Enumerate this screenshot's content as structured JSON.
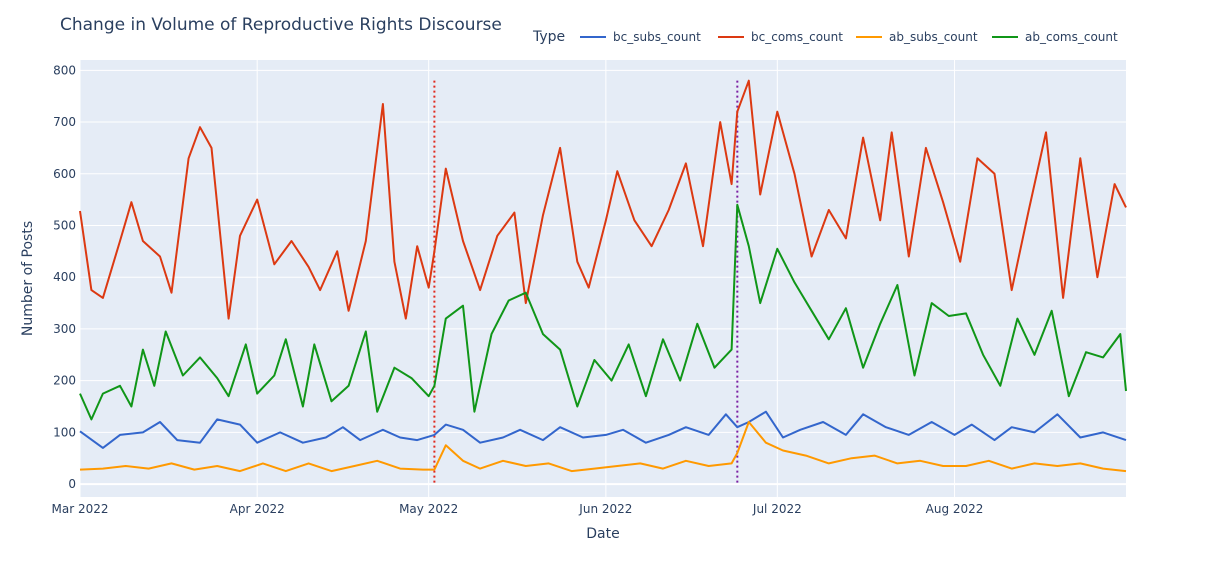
{
  "chart_data": {
    "type": "line",
    "title": "Change in Volume of Reproductive Rights Discourse",
    "xlabel": "Date",
    "ylabel": "Number of Posts",
    "legend_title": "Type",
    "legend_position": "top-right, horizontal",
    "grid": true,
    "x_range": [
      "2022-03-01",
      "2022-08-31"
    ],
    "ylim": [
      -25,
      820
    ],
    "x_ticks": [
      {
        "date": "2022-03-01",
        "label": "Mar 2022"
      },
      {
        "date": "2022-04-01",
        "label": "Apr 2022"
      },
      {
        "date": "2022-05-01",
        "label": "May 2022"
      },
      {
        "date": "2022-06-01",
        "label": "Jun 2022"
      },
      {
        "date": "2022-07-01",
        "label": "Jul 2022"
      },
      {
        "date": "2022-08-01",
        "label": "Aug 2022"
      }
    ],
    "y_ticks": [
      0,
      100,
      200,
      300,
      400,
      500,
      600,
      700,
      800
    ],
    "reference_lines": [
      {
        "date": "2022-05-02",
        "color": "#e0281e",
        "style": "dotted"
      },
      {
        "date": "2022-06-24",
        "color": "#7b1fa2",
        "style": "dotted"
      }
    ],
    "series_key_points": [
      {
        "name": "bc_subs_count",
        "color": "#3366cc",
        "points": [
          [
            "2022-03-01",
            102
          ],
          [
            "2022-03-05",
            70
          ],
          [
            "2022-03-08",
            95
          ],
          [
            "2022-03-12",
            100
          ],
          [
            "2022-03-15",
            120
          ],
          [
            "2022-03-18",
            85
          ],
          [
            "2022-03-22",
            80
          ],
          [
            "2022-03-25",
            125
          ],
          [
            "2022-03-29",
            115
          ],
          [
            "2022-04-01",
            80
          ],
          [
            "2022-04-05",
            100
          ],
          [
            "2022-04-09",
            80
          ],
          [
            "2022-04-13",
            90
          ],
          [
            "2022-04-16",
            110
          ],
          [
            "2022-04-19",
            85
          ],
          [
            "2022-04-23",
            105
          ],
          [
            "2022-04-26",
            90
          ],
          [
            "2022-04-29",
            85
          ],
          [
            "2022-05-02",
            95
          ],
          [
            "2022-05-04",
            115
          ],
          [
            "2022-05-07",
            105
          ],
          [
            "2022-05-10",
            80
          ],
          [
            "2022-05-14",
            90
          ],
          [
            "2022-05-17",
            105
          ],
          [
            "2022-05-21",
            85
          ],
          [
            "2022-05-24",
            110
          ],
          [
            "2022-05-28",
            90
          ],
          [
            "2022-06-01",
            95
          ],
          [
            "2022-06-04",
            105
          ],
          [
            "2022-06-08",
            80
          ],
          [
            "2022-06-12",
            95
          ],
          [
            "2022-06-15",
            110
          ],
          [
            "2022-06-19",
            95
          ],
          [
            "2022-06-22",
            135
          ],
          [
            "2022-06-24",
            110
          ],
          [
            "2022-06-26",
            120
          ],
          [
            "2022-06-29",
            140
          ],
          [
            "2022-07-02",
            90
          ],
          [
            "2022-07-05",
            105
          ],
          [
            "2022-07-09",
            120
          ],
          [
            "2022-07-13",
            95
          ],
          [
            "2022-07-16",
            135
          ],
          [
            "2022-07-20",
            110
          ],
          [
            "2022-07-24",
            95
          ],
          [
            "2022-07-28",
            120
          ],
          [
            "2022-08-01",
            95
          ],
          [
            "2022-08-04",
            115
          ],
          [
            "2022-08-08",
            85
          ],
          [
            "2022-08-11",
            110
          ],
          [
            "2022-08-15",
            100
          ],
          [
            "2022-08-19",
            135
          ],
          [
            "2022-08-23",
            90
          ],
          [
            "2022-08-27",
            100
          ],
          [
            "2022-08-31",
            85
          ]
        ]
      },
      {
        "name": "bc_coms_count",
        "color": "#dc3912",
        "points": [
          [
            "2022-03-01",
            528
          ],
          [
            "2022-03-03",
            375
          ],
          [
            "2022-03-05",
            360
          ],
          [
            "2022-03-08",
            470
          ],
          [
            "2022-03-10",
            545
          ],
          [
            "2022-03-12",
            470
          ],
          [
            "2022-03-15",
            440
          ],
          [
            "2022-03-17",
            370
          ],
          [
            "2022-03-20",
            630
          ],
          [
            "2022-03-22",
            690
          ],
          [
            "2022-03-24",
            650
          ],
          [
            "2022-03-27",
            320
          ],
          [
            "2022-03-29",
            480
          ],
          [
            "2022-04-01",
            550
          ],
          [
            "2022-04-04",
            425
          ],
          [
            "2022-04-07",
            470
          ],
          [
            "2022-04-10",
            420
          ],
          [
            "2022-04-12",
            375
          ],
          [
            "2022-04-15",
            450
          ],
          [
            "2022-04-17",
            335
          ],
          [
            "2022-04-20",
            470
          ],
          [
            "2022-04-23",
            735
          ],
          [
            "2022-04-25",
            430
          ],
          [
            "2022-04-27",
            320
          ],
          [
            "2022-04-29",
            460
          ],
          [
            "2022-05-01",
            380
          ],
          [
            "2022-05-02",
            450
          ],
          [
            "2022-05-04",
            610
          ],
          [
            "2022-05-07",
            470
          ],
          [
            "2022-05-10",
            375
          ],
          [
            "2022-05-13",
            480
          ],
          [
            "2022-05-16",
            525
          ],
          [
            "2022-05-18",
            350
          ],
          [
            "2022-05-21",
            520
          ],
          [
            "2022-05-24",
            650
          ],
          [
            "2022-05-27",
            430
          ],
          [
            "2022-05-29",
            380
          ],
          [
            "2022-06-01",
            510
          ],
          [
            "2022-06-03",
            605
          ],
          [
            "2022-06-06",
            510
          ],
          [
            "2022-06-09",
            460
          ],
          [
            "2022-06-12",
            530
          ],
          [
            "2022-06-15",
            620
          ],
          [
            "2022-06-18",
            460
          ],
          [
            "2022-06-21",
            700
          ],
          [
            "2022-06-23",
            580
          ],
          [
            "2022-06-24",
            720
          ],
          [
            "2022-06-26",
            780
          ],
          [
            "2022-06-28",
            560
          ],
          [
            "2022-07-01",
            720
          ],
          [
            "2022-07-04",
            600
          ],
          [
            "2022-07-07",
            440
          ],
          [
            "2022-07-10",
            530
          ],
          [
            "2022-07-13",
            475
          ],
          [
            "2022-07-16",
            670
          ],
          [
            "2022-07-19",
            510
          ],
          [
            "2022-07-21",
            680
          ],
          [
            "2022-07-24",
            440
          ],
          [
            "2022-07-27",
            650
          ],
          [
            "2022-07-30",
            545
          ],
          [
            "2022-08-02",
            430
          ],
          [
            "2022-08-05",
            630
          ],
          [
            "2022-08-08",
            600
          ],
          [
            "2022-08-11",
            375
          ],
          [
            "2022-08-14",
            530
          ],
          [
            "2022-08-17",
            680
          ],
          [
            "2022-08-20",
            360
          ],
          [
            "2022-08-23",
            630
          ],
          [
            "2022-08-26",
            400
          ],
          [
            "2022-08-29",
            580
          ],
          [
            "2022-08-31",
            535
          ]
        ]
      },
      {
        "name": "ab_subs_count",
        "color": "#ff9900",
        "points": [
          [
            "2022-03-01",
            28
          ],
          [
            "2022-03-05",
            30
          ],
          [
            "2022-03-09",
            35
          ],
          [
            "2022-03-13",
            30
          ],
          [
            "2022-03-17",
            40
          ],
          [
            "2022-03-21",
            28
          ],
          [
            "2022-03-25",
            35
          ],
          [
            "2022-03-29",
            25
          ],
          [
            "2022-04-02",
            40
          ],
          [
            "2022-04-06",
            25
          ],
          [
            "2022-04-10",
            40
          ],
          [
            "2022-04-14",
            25
          ],
          [
            "2022-04-18",
            35
          ],
          [
            "2022-04-22",
            45
          ],
          [
            "2022-04-26",
            30
          ],
          [
            "2022-04-30",
            28
          ],
          [
            "2022-05-02",
            28
          ],
          [
            "2022-05-04",
            75
          ],
          [
            "2022-05-07",
            45
          ],
          [
            "2022-05-10",
            30
          ],
          [
            "2022-05-14",
            45
          ],
          [
            "2022-05-18",
            35
          ],
          [
            "2022-05-22",
            40
          ],
          [
            "2022-05-26",
            25
          ],
          [
            "2022-05-30",
            30
          ],
          [
            "2022-06-03",
            35
          ],
          [
            "2022-06-07",
            40
          ],
          [
            "2022-06-11",
            30
          ],
          [
            "2022-06-15",
            45
          ],
          [
            "2022-06-19",
            35
          ],
          [
            "2022-06-23",
            40
          ],
          [
            "2022-06-24",
            60
          ],
          [
            "2022-06-26",
            120
          ],
          [
            "2022-06-29",
            80
          ],
          [
            "2022-07-02",
            65
          ],
          [
            "2022-07-06",
            55
          ],
          [
            "2022-07-10",
            40
          ],
          [
            "2022-07-14",
            50
          ],
          [
            "2022-07-18",
            55
          ],
          [
            "2022-07-22",
            40
          ],
          [
            "2022-07-26",
            45
          ],
          [
            "2022-07-30",
            35
          ],
          [
            "2022-08-03",
            35
          ],
          [
            "2022-08-07",
            45
          ],
          [
            "2022-08-11",
            30
          ],
          [
            "2022-08-15",
            40
          ],
          [
            "2022-08-19",
            35
          ],
          [
            "2022-08-23",
            40
          ],
          [
            "2022-08-27",
            30
          ],
          [
            "2022-08-31",
            25
          ]
        ]
      },
      {
        "name": "ab_coms_count",
        "color": "#109618",
        "points": [
          [
            "2022-03-01",
            175
          ],
          [
            "2022-03-03",
            125
          ],
          [
            "2022-03-05",
            175
          ],
          [
            "2022-03-08",
            190
          ],
          [
            "2022-03-10",
            150
          ],
          [
            "2022-03-12",
            260
          ],
          [
            "2022-03-14",
            190
          ],
          [
            "2022-03-16",
            295
          ],
          [
            "2022-03-19",
            210
          ],
          [
            "2022-03-22",
            245
          ],
          [
            "2022-03-25",
            205
          ],
          [
            "2022-03-27",
            170
          ],
          [
            "2022-03-30",
            270
          ],
          [
            "2022-04-01",
            175
          ],
          [
            "2022-04-04",
            210
          ],
          [
            "2022-04-06",
            280
          ],
          [
            "2022-04-09",
            150
          ],
          [
            "2022-04-11",
            270
          ],
          [
            "2022-04-14",
            160
          ],
          [
            "2022-04-17",
            190
          ],
          [
            "2022-04-20",
            295
          ],
          [
            "2022-04-22",
            140
          ],
          [
            "2022-04-25",
            225
          ],
          [
            "2022-04-28",
            205
          ],
          [
            "2022-05-01",
            170
          ],
          [
            "2022-05-02",
            190
          ],
          [
            "2022-05-04",
            320
          ],
          [
            "2022-05-07",
            345
          ],
          [
            "2022-05-09",
            140
          ],
          [
            "2022-05-12",
            290
          ],
          [
            "2022-05-15",
            355
          ],
          [
            "2022-05-18",
            370
          ],
          [
            "2022-05-21",
            290
          ],
          [
            "2022-05-24",
            260
          ],
          [
            "2022-05-27",
            150
          ],
          [
            "2022-05-30",
            240
          ],
          [
            "2022-06-02",
            200
          ],
          [
            "2022-06-05",
            270
          ],
          [
            "2022-06-08",
            170
          ],
          [
            "2022-06-11",
            280
          ],
          [
            "2022-06-14",
            200
          ],
          [
            "2022-06-17",
            310
          ],
          [
            "2022-06-20",
            225
          ],
          [
            "2022-06-23",
            260
          ],
          [
            "2022-06-24",
            540
          ],
          [
            "2022-06-26",
            460
          ],
          [
            "2022-06-28",
            350
          ],
          [
            "2022-07-01",
            455
          ],
          [
            "2022-07-04",
            390
          ],
          [
            "2022-07-07",
            335
          ],
          [
            "2022-07-10",
            280
          ],
          [
            "2022-07-13",
            340
          ],
          [
            "2022-07-16",
            225
          ],
          [
            "2022-07-19",
            310
          ],
          [
            "2022-07-22",
            385
          ],
          [
            "2022-07-25",
            210
          ],
          [
            "2022-07-28",
            350
          ],
          [
            "2022-07-31",
            325
          ],
          [
            "2022-08-03",
            330
          ],
          [
            "2022-08-06",
            250
          ],
          [
            "2022-08-09",
            190
          ],
          [
            "2022-08-12",
            320
          ],
          [
            "2022-08-15",
            250
          ],
          [
            "2022-08-18",
            335
          ],
          [
            "2022-08-21",
            170
          ],
          [
            "2022-08-24",
            255
          ],
          [
            "2022-08-27",
            245
          ],
          [
            "2022-08-30",
            290
          ],
          [
            "2022-08-31",
            180
          ]
        ]
      }
    ]
  }
}
